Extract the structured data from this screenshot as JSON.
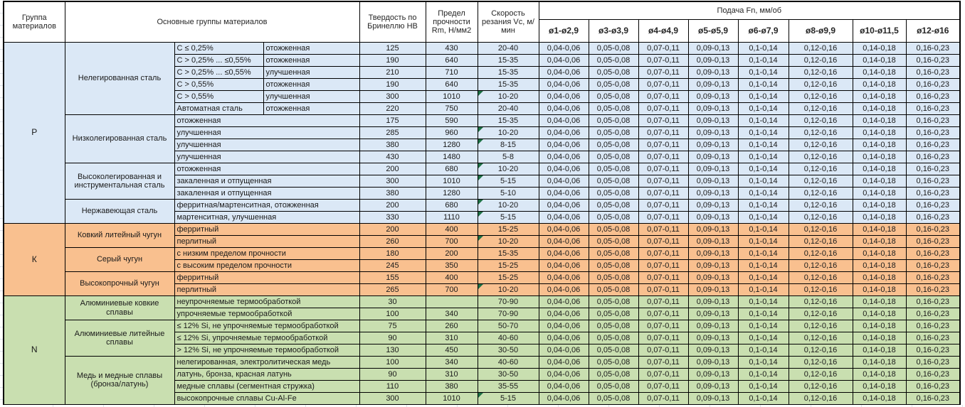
{
  "colors": {
    "p_section": "#dbe8f6",
    "k_section": "#f9c08f",
    "n_section": "#c9dfb0",
    "flag_triangle": "#1e7145",
    "border": "#000000"
  },
  "header": {
    "col_group": "Группа материалов",
    "col_main_groups": "Основные группы материалов",
    "col_hardness": "Твердость по Бринеллю HB",
    "col_strength": "Предел прочности Rm, Н/мм2",
    "col_speed": "Скорость резания Vc, м/мин",
    "feed_title": "Подача Fn, мм/об",
    "feed_columns": [
      "ø1-ø2,9",
      "ø3-ø3,9",
      "ø4-ø4,9",
      "ø5-ø5,9",
      "ø6-ø7,9",
      "ø8-ø9,9",
      "ø10-ø11,5",
      "ø12-ø16"
    ]
  },
  "feed_row_values": [
    "0,04-0,06",
    "0,05-0,08",
    "0,07-0,11",
    "0,09-0,13",
    "0,1-0,14",
    "0,12-0,16",
    "0,14-0,18",
    "0,16-0,23"
  ],
  "rows": [
    {
      "section": "P",
      "group_label": "P",
      "group_rowspan": 15,
      "family_label": "Нелегированная сталь",
      "family_rowspan": 6,
      "sub": "C ≤ 0,25%",
      "cond": "отожженная",
      "hb": "125",
      "rm": "430",
      "vc": "20-40",
      "flag": false
    },
    {
      "section": "P",
      "sub": "C > 0,25% ... ≤0,55%",
      "cond": "отожженная",
      "hb": "190",
      "rm": "640",
      "vc": "15-35",
      "flag": false
    },
    {
      "section": "P",
      "sub": "C > 0,25% ... ≤0,55%",
      "cond": "улучшенная",
      "hb": "210",
      "rm": "710",
      "vc": "15-35",
      "flag": false
    },
    {
      "section": "P",
      "sub": "C > 0,55%",
      "cond": "отожженная",
      "hb": "190",
      "rm": "640",
      "vc": "15-35",
      "flag": false
    },
    {
      "section": "P",
      "sub": "C > 0,55%",
      "cond": "улучшенная",
      "hb": "300",
      "rm": "1010",
      "vc": "10-20",
      "flag": true
    },
    {
      "section": "P",
      "sub": "Автоматная сталь",
      "cond": "отожженная",
      "hb": "220",
      "rm": "750",
      "vc": "20-40",
      "flag": false
    },
    {
      "section": "P",
      "family_label": "Низколегированная сталь",
      "family_rowspan": 4,
      "desc": "отожженная",
      "hb": "175",
      "rm": "590",
      "vc": "15-35",
      "flag": false
    },
    {
      "section": "P",
      "desc": "улучшенная",
      "hb": "285",
      "rm": "960",
      "vc": "10-20",
      "flag": true
    },
    {
      "section": "P",
      "desc": "улучшенная",
      "hb": "380",
      "rm": "1280",
      "vc": "8-15",
      "flag": true
    },
    {
      "section": "P",
      "desc": "улучшенная",
      "hb": "430",
      "rm": "1480",
      "vc": "5-8",
      "flag": false
    },
    {
      "section": "P",
      "family_label": "Высоколегированная и инструментальная сталь",
      "family_rowspan": 3,
      "desc": "отожженная",
      "hb": "200",
      "rm": "680",
      "vc": "10-20",
      "flag": true
    },
    {
      "section": "P",
      "desc": "закаленная и отпущенная",
      "hb": "300",
      "rm": "1010",
      "vc": "5-15",
      "flag": true
    },
    {
      "section": "P",
      "desc": "закаленная и отпущенная",
      "hb": "380",
      "rm": "1280",
      "vc": "5-10",
      "flag": false
    },
    {
      "section": "P",
      "family_label": "Нержавеющая сталь",
      "family_rowspan": 2,
      "desc": "ферритная/мартенситная, отожженная",
      "hb": "200",
      "rm": "680",
      "vc": "10-20",
      "flag": true
    },
    {
      "section": "P",
      "desc": "мартенситная, улучшенная",
      "hb": "330",
      "rm": "1110",
      "vc": "5-15",
      "flag": true
    },
    {
      "section": "K",
      "group_label": "К",
      "group_rowspan": 6,
      "family_label": "Ковкий литейный чугун",
      "family_rowspan": 2,
      "desc": "ферритный",
      "hb": "200",
      "rm": "400",
      "vc": "15-25",
      "flag": false
    },
    {
      "section": "K",
      "desc": "перлитный",
      "hb": "260",
      "rm": "700",
      "vc": "10-20",
      "flag": true
    },
    {
      "section": "K",
      "family_label": "Серый чугун",
      "family_rowspan": 2,
      "desc": "с низким пределом прочности",
      "hb": "180",
      "rm": "200",
      "vc": "15-35",
      "flag": false
    },
    {
      "section": "K",
      "desc": "с высоким пределом прочности",
      "hb": "245",
      "rm": "350",
      "vc": "15-25",
      "flag": false
    },
    {
      "section": "K",
      "family_label": "Высокопрочный чугун",
      "family_rowspan": 2,
      "desc": "ферритный",
      "hb": "155",
      "rm": "400",
      "vc": "15-25",
      "flag": false
    },
    {
      "section": "K",
      "desc": "перлитный",
      "hb": "265",
      "rm": "700",
      "vc": "10-20",
      "flag": true
    },
    {
      "section": "N",
      "group_label": "N",
      "group_rowspan": 9,
      "family_label": "Алюминиевые ковкие сплавы",
      "family_rowspan": 2,
      "desc": "неупрочняемые термообработкой",
      "hb": "30",
      "rm": "",
      "vc": "70-90",
      "flag": false
    },
    {
      "section": "N",
      "desc": "упрочняемые термообработкой",
      "hb": "100",
      "rm": "340",
      "vc": "70-90",
      "flag": false
    },
    {
      "section": "N",
      "family_label": "Алюминиевые литейные сплавы",
      "family_rowspan": 3,
      "desc": "≤ 12% Si, не упрочняемые термообработкой",
      "hb": "75",
      "rm": "260",
      "vc": "50-70",
      "flag": false
    },
    {
      "section": "N",
      "desc": "≤ 12% Si, упрочняемые термообработкой",
      "hb": "90",
      "rm": "310",
      "vc": "40-60",
      "flag": false
    },
    {
      "section": "N",
      "desc": "> 12% Si, не упрочняемые термообработкой",
      "hb": "130",
      "rm": "450",
      "vc": "30-50",
      "flag": false
    },
    {
      "section": "N",
      "family_label": "Медь и медные сплавы (бронза/латунь)",
      "family_rowspan": 4,
      "desc": "нелегированная, электролитическая медь",
      "hb": "100",
      "rm": "340",
      "vc": "40-60",
      "flag": false
    },
    {
      "section": "N",
      "desc": "латунь, бронза, красная латунь",
      "hb": "90",
      "rm": "310",
      "vc": "30-50",
      "flag": false
    },
    {
      "section": "N",
      "desc": "медные сплавы (сегментная стружка)",
      "hb": "110",
      "rm": "380",
      "vc": "35-55",
      "flag": false
    },
    {
      "section": "N",
      "desc": "высокопрочные сплавы Cu-Al-Fe",
      "hb": "300",
      "rm": "1010",
      "vc": "5-15",
      "flag": true
    }
  ]
}
